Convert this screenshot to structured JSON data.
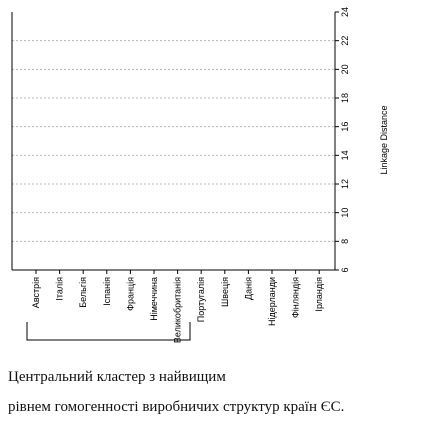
{
  "chart_data": {
    "type": "dendrogram",
    "title": "",
    "ylabel": "Linkage Distance",
    "ylim": [
      6,
      24
    ],
    "yticks": [
      6,
      8,
      10,
      12,
      14,
      16,
      18,
      20,
      22,
      24
    ],
    "grid": true,
    "leaves": [
      "Австрія",
      "Італія",
      "Бельгія",
      "Іспанія",
      "Франція",
      "Німеччина",
      "Великобританія",
      "Португалія",
      "Швеція",
      "Данія",
      "Нідерланди",
      "Фінляндія",
      "Ірландія"
    ],
    "merges": [
      {
        "a": 3,
        "b": 4,
        "height": 8.8
      },
      {
        "a": 13,
        "b": 5,
        "height": 9.2
      },
      {
        "a": 0,
        "b": 1,
        "height": 9.6
      },
      {
        "a": 2,
        "b": 14,
        "height": 10.2
      },
      {
        "a": 16,
        "b": 6,
        "height": 11.0
      },
      {
        "a": 15,
        "b": 17,
        "height": 11.1
      },
      {
        "a": 18,
        "b": 7,
        "height": 12.3
      },
      {
        "a": 19,
        "b": 8,
        "height": 13.5
      },
      {
        "a": 20,
        "b": 9,
        "height": 14.9
      },
      {
        "a": 21,
        "b": 10,
        "height": 16.6
      },
      {
        "a": 22,
        "b": 11,
        "height": 18.6
      },
      {
        "a": 23,
        "b": 12,
        "height": 22.7
      }
    ]
  },
  "caption": {
    "line1": "Центральний кластер з найвищим",
    "line2": "рівнем гомогенності виробничих структур країн ЄС."
  },
  "colors": {
    "links": "#2a2ad0",
    "axis": "#000000",
    "grid": "#b8b8b8",
    "bracket": "#000000"
  }
}
